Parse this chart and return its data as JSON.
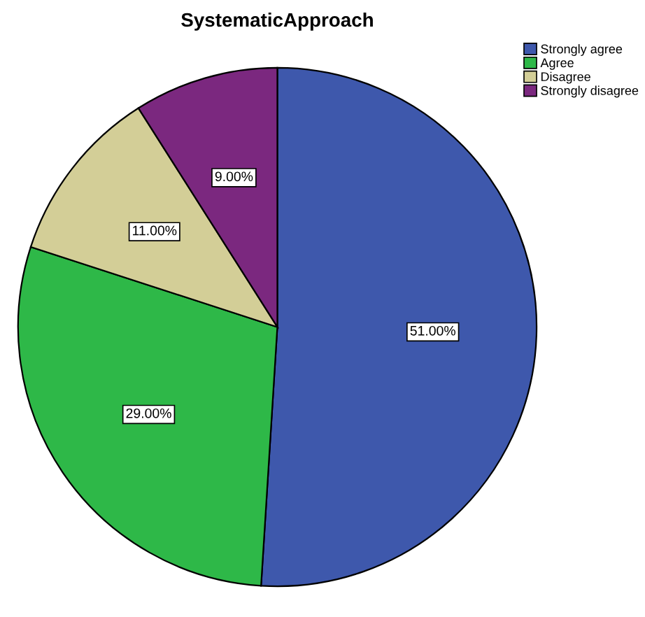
{
  "chart_data": {
    "type": "pie",
    "title": "SystematicApproach",
    "categories": [
      "Strongly agree",
      "Agree",
      "Disagree",
      "Strongly disagree"
    ],
    "values": [
      51,
      29,
      11,
      9
    ],
    "colors": [
      "#3e58ac",
      "#2eb848",
      "#d3ce97",
      "#7b287f"
    ],
    "value_labels": [
      "51.00%",
      "29.00%",
      "11.00%",
      "9.00%"
    ],
    "legend": "top right"
  }
}
